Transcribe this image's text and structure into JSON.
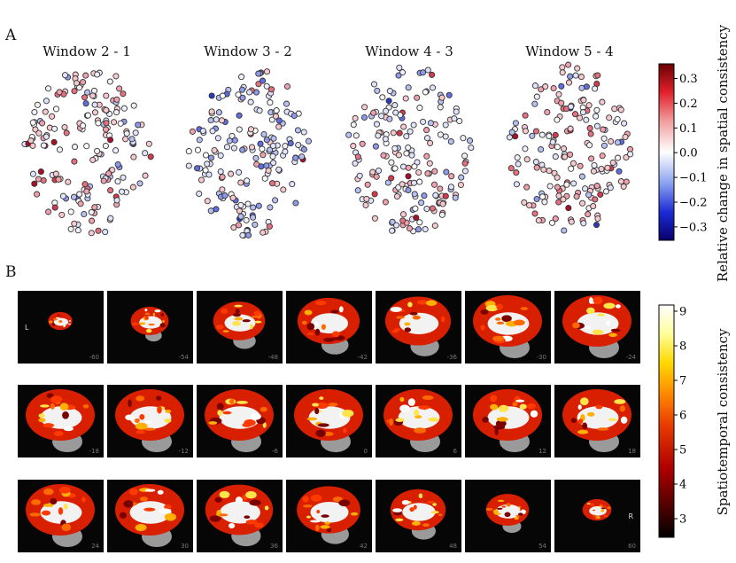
{
  "panel_a": {
    "label": "A",
    "windows": [
      {
        "title": "Window 2 - 1"
      },
      {
        "title": "Window 3 - 2"
      },
      {
        "title": "Window 4 - 3"
      },
      {
        "title": "Window 5 - 4"
      }
    ],
    "colorbar": {
      "title": "Relative change in spatial consistency",
      "ticks": [
        "0.3",
        "0.2",
        "0.1",
        "0.0",
        "−0.1",
        "−0.2",
        "−0.3"
      ],
      "range": [
        -0.35,
        0.35
      ],
      "colors": [
        "#08006a",
        "#1b2bd6",
        "#8fa6f0",
        "#ffffff",
        "#f2a0a0",
        "#e0202a",
        "#6b0000"
      ]
    }
  },
  "panel_b": {
    "label": "B",
    "rows": [
      {
        "coords": [
          "-60",
          "-54",
          "-48",
          "-42",
          "-36",
          "-30",
          "-24"
        ]
      },
      {
        "coords": [
          "-18",
          "-12",
          "-6",
          "0",
          "6",
          "12",
          "18"
        ]
      },
      {
        "coords": [
          "24",
          "30",
          "36",
          "42",
          "48",
          "54",
          "60"
        ]
      }
    ],
    "first_tile_letter": "L",
    "last_tile_letter": "R",
    "colorbar": {
      "title": "Spatiotemporal consistency",
      "ticks": [
        "9",
        "8",
        "7",
        "6",
        "5",
        "4",
        "3"
      ],
      "range": [
        2.4,
        9.1
      ],
      "colors": [
        "#000000",
        "#5a0000",
        "#b00000",
        "#e83a00",
        "#ff8a00",
        "#ffd800",
        "#ffffa0",
        "#ffffff"
      ]
    }
  }
}
